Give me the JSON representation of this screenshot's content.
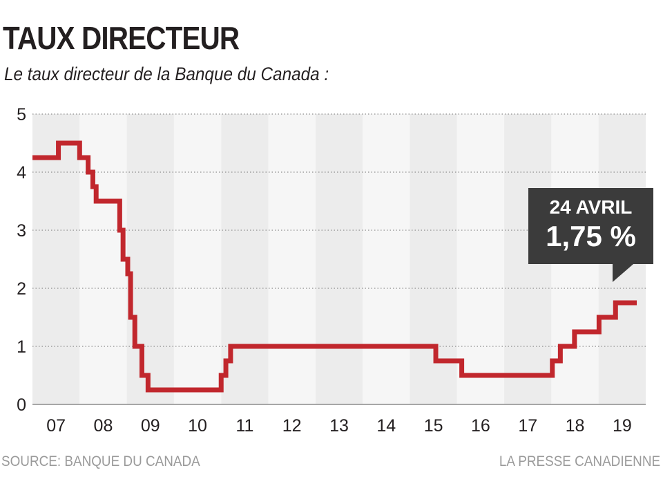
{
  "header": {
    "title": "TAUX DIRECTEUR",
    "subtitle": "Le taux directeur de la Banque du Canada :"
  },
  "footer": {
    "source": "SOURCE: BANQUE DU CANADA",
    "credit": "LA PRESSE CANADIENNE"
  },
  "callout": {
    "date": "24 AVRIL",
    "value": "1,75 %"
  },
  "colors": {
    "line": "#c1272d",
    "band_dark": "#ececec",
    "band_light": "#f6f6f6",
    "grid": "#8c8c8c",
    "callout_bg": "#3b3b3b"
  },
  "chart_data": {
    "type": "line",
    "step": true,
    "x_unit": "year",
    "y_unit": "%",
    "xlim": [
      2006.5,
      2019.5
    ],
    "ylim": [
      0,
      5
    ],
    "yticks": [
      "0",
      "1",
      "2",
      "3",
      "4",
      "5"
    ],
    "xticks": [
      "07",
      "08",
      "09",
      "10",
      "11",
      "12",
      "13",
      "14",
      "15",
      "16",
      "17",
      "18",
      "19"
    ],
    "grid": true,
    "series": [
      {
        "x": [
          2006.5,
          2007.05,
          2007.5,
          2007.68,
          2007.78,
          2007.85,
          2008.35,
          2008.42,
          2008.52,
          2008.58,
          2008.67,
          2008.82,
          2008.95,
          2009.27,
          2009.33,
          2010.5,
          2010.6,
          2010.7,
          2014.55,
          2015.05,
          2015.6,
          2017.52,
          2017.69,
          2017.99,
          2018.51,
          2018.86,
          2019.29,
          2019.31
        ],
        "y": [
          4.25,
          4.5,
          4.25,
          4.0,
          3.75,
          3.5,
          3.0,
          2.5,
          2.25,
          1.5,
          1.0,
          0.5,
          0.25,
          0.25,
          0.25,
          0.5,
          0.75,
          1.0,
          1.0,
          0.75,
          0.5,
          0.75,
          1.0,
          1.25,
          1.5,
          1.75,
          1.75,
          1.75
        ]
      }
    ]
  }
}
